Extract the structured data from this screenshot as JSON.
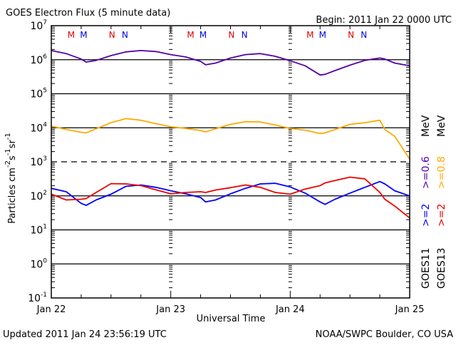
{
  "chart_data": {
    "type": "line",
    "title": "GOES Electron Flux (5 minute data)",
    "begin_label": "Begin: 2011 Jan 22 0000 UTC",
    "xlabel": "Universal Time",
    "ylabel": "Particles cm-2s-1sr-1",
    "ylabel_parts": {
      "base": "Particles cm",
      "exp1": "-2",
      "mid": "s",
      "exp2": "-1",
      "mid2": "sr",
      "exp3": "-1"
    },
    "y_scale": "log",
    "ylim_log10": [
      -1,
      7
    ],
    "y_ticks": [
      {
        "base": "10",
        "exp": "7"
      },
      {
        "base": "10",
        "exp": "6"
      },
      {
        "base": "10",
        "exp": "5"
      },
      {
        "base": "10",
        "exp": "4"
      },
      {
        "base": "10",
        "exp": "3"
      },
      {
        "base": "10",
        "exp": "2"
      },
      {
        "base": "10",
        "exp": "1"
      },
      {
        "base": "10",
        "exp": "0"
      },
      {
        "base": "10",
        "exp": "-1"
      }
    ],
    "solid_gridlines_log10": [
      6,
      5,
      4,
      2,
      1,
      0
    ],
    "dashed_gridlines_log10": [
      3
    ],
    "x_range_hours": [
      0,
      72
    ],
    "x_ticks": [
      {
        "hour": 0,
        "label": "Jan 22"
      },
      {
        "hour": 24,
        "label": "Jan 23"
      },
      {
        "hour": 48,
        "label": "Jan 24"
      },
      {
        "hour": 72,
        "label": "Jan 25"
      }
    ],
    "markers": [
      {
        "hour": 4.0,
        "label": "M",
        "color": "#e00000"
      },
      {
        "hour": 6.5,
        "label": "M",
        "color": "#0000e0"
      },
      {
        "hour": 12.2,
        "label": "N",
        "color": "#e00000"
      },
      {
        "hour": 14.8,
        "label": "N",
        "color": "#0000e0"
      },
      {
        "hour": 28.0,
        "label": "M",
        "color": "#e00000"
      },
      {
        "hour": 30.5,
        "label": "M",
        "color": "#0000e0"
      },
      {
        "hour": 36.2,
        "label": "N",
        "color": "#e00000"
      },
      {
        "hour": 38.8,
        "label": "N",
        "color": "#0000e0"
      },
      {
        "hour": 52.0,
        "label": "M",
        "color": "#e00000"
      },
      {
        "hour": 54.5,
        "label": "M",
        "color": "#0000e0"
      },
      {
        "hour": 60.2,
        "label": "N",
        "color": "#e00000"
      },
      {
        "hour": 62.8,
        "label": "N",
        "color": "#0000e0"
      }
    ],
    "x_hours": [
      0,
      3,
      6,
      7,
      9,
      12,
      15,
      18,
      21,
      24,
      27,
      30,
      31,
      33,
      36,
      39,
      42,
      45,
      48,
      51,
      54,
      55,
      57,
      60,
      63,
      66,
      67,
      69,
      72
    ],
    "series": [
      {
        "name": ">=0.6 MeV",
        "satellite": "GOES11",
        "color": "#5500aa",
        "log10_values": [
          6.27,
          6.18,
          6.02,
          5.93,
          5.98,
          6.12,
          6.23,
          6.27,
          6.24,
          6.15,
          6.08,
          5.95,
          5.85,
          5.9,
          6.05,
          6.15,
          6.18,
          6.1,
          5.97,
          5.82,
          5.55,
          5.57,
          5.68,
          5.84,
          5.98,
          6.05,
          6.02,
          5.9,
          5.82
        ]
      },
      {
        "name": ">=0.8 MeV",
        "satellite": "GOES13",
        "color": "#ffaa00",
        "log10_values": [
          4.05,
          3.95,
          3.87,
          3.85,
          3.97,
          4.15,
          4.27,
          4.22,
          4.12,
          4.03,
          3.98,
          3.92,
          3.88,
          3.97,
          4.1,
          4.18,
          4.17,
          4.08,
          3.98,
          3.93,
          3.83,
          3.85,
          3.95,
          4.1,
          4.15,
          4.22,
          3.95,
          3.75,
          3.08
        ]
      },
      {
        "name": ">=2 MeV",
        "satellite": "GOES11",
        "color": "#0000ff",
        "log10_values": [
          2.22,
          2.12,
          1.78,
          1.72,
          1.88,
          2.05,
          2.28,
          2.32,
          2.25,
          2.15,
          2.06,
          1.95,
          1.82,
          1.88,
          2.06,
          2.22,
          2.35,
          2.37,
          2.26,
          2.08,
          1.82,
          1.75,
          1.9,
          2.08,
          2.25,
          2.42,
          2.35,
          2.15,
          2.0
        ]
      },
      {
        "name": ">=2 MeV",
        "satellite": "GOES13",
        "color": "#ee0000",
        "log10_values": [
          2.05,
          1.88,
          1.9,
          1.92,
          2.1,
          2.36,
          2.35,
          2.3,
          2.18,
          2.06,
          2.1,
          2.12,
          2.1,
          2.17,
          2.24,
          2.32,
          2.25,
          2.1,
          2.05,
          2.2,
          2.3,
          2.38,
          2.45,
          2.55,
          2.5,
          2.1,
          1.9,
          1.7,
          1.35
        ]
      }
    ],
    "legend": {
      "placement": "right",
      "columns": [
        {
          "satellite": "GOES11",
          "entries": [
            {
              "text": ">=2",
              "color": "#0000ff"
            },
            {
              "text": ">=0.6",
              "color": "#5500aa"
            }
          ],
          "unit": "MeV"
        },
        {
          "satellite": "GOES13",
          "entries": [
            {
              "text": ">=2",
              "color": "#ee0000"
            },
            {
              "text": ">=0.8",
              "color": "#ffaa00"
            }
          ],
          "unit": "MeV"
        }
      ]
    }
  },
  "footer": {
    "updated": "Updated 2011 Jan 24 23:56:19 UTC",
    "credit": "NOAA/SWPC Boulder, CO USA"
  }
}
